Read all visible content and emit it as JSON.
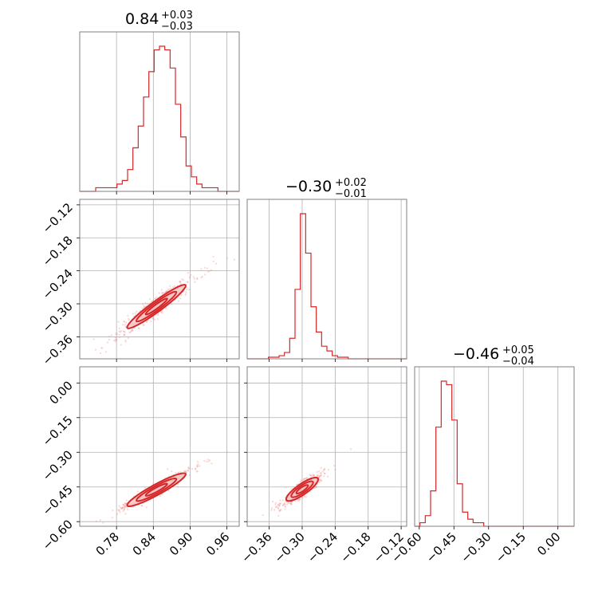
{
  "colors": {
    "series": "#d62728",
    "fill_light": "#f6c9c9",
    "points": "#f08a8a"
  },
  "chart_data": {
    "type": "corner",
    "parameters": [
      {
        "title_value": "0.84",
        "title_plus": "+0.03",
        "title_minus": "−0.03",
        "range": [
          0.72,
          0.98
        ],
        "ticks": [
          0.78,
          0.84,
          0.9,
          0.96
        ],
        "tick_labels": [
          "0.78",
          "0.84",
          "0.90",
          "0.96"
        ],
        "hist": [
          0,
          0,
          0,
          1,
          1,
          1,
          1,
          2,
          3,
          6,
          12,
          18,
          26,
          33,
          39,
          40,
          39,
          34,
          24,
          15,
          7,
          4,
          2,
          1,
          1,
          1,
          0,
          0,
          0,
          0
        ]
      },
      {
        "title_value": "−0.30",
        "title_plus": "+0.02",
        "title_minus": "−0.01",
        "range": [
          -0.4,
          -0.11
        ],
        "ticks": [
          -0.36,
          -0.3,
          -0.24,
          -0.18,
          -0.12
        ],
        "tick_labels": [
          "−0.36",
          "−0.30",
          "−0.24",
          "−0.18",
          "−0.12"
        ],
        "hist": [
          0,
          0,
          0,
          0,
          1,
          1,
          2,
          4,
          13,
          44,
          92,
          67,
          33,
          17,
          8,
          5,
          2,
          1,
          1,
          0,
          0,
          0,
          0,
          0,
          0,
          0,
          0,
          0,
          0,
          0
        ]
      },
      {
        "title_value": "−0.46",
        "title_plus": "+0.05",
        "title_minus": "−0.04",
        "range": [
          -0.62,
          0.07
        ],
        "ticks": [
          -0.6,
          -0.45,
          -0.3,
          -0.15,
          0.0
        ],
        "tick_labels": [
          "−0.60",
          "−0.45",
          "−0.30",
          "−0.15",
          "0.00"
        ],
        "hist": [
          0,
          1,
          3,
          10,
          28,
          41,
          40,
          30,
          12,
          4,
          2,
          1,
          1,
          0,
          0,
          0,
          0,
          0,
          0,
          0,
          0,
          0,
          0,
          0,
          0,
          0,
          0,
          0,
          0,
          0
        ]
      }
    ],
    "pairs": [
      {
        "xi": 0,
        "yi": 1,
        "slope": 0.82,
        "y0": -0.305,
        "x0": 0.845,
        "sx": 0.025,
        "sy": 0.008
      },
      {
        "xi": 0,
        "yi": 2,
        "slope": 1.45,
        "y0": -0.462,
        "x0": 0.845,
        "sx": 0.025,
        "sy": 0.012
      },
      {
        "xi": 1,
        "yi": 2,
        "slope": 1.65,
        "y0": -0.46,
        "x0": -0.3,
        "sx": 0.015,
        "sy": 0.016
      }
    ],
    "y_tick_labels": {
      "row1": [
        "−0.12",
        "−0.18",
        "−0.24",
        "−0.30",
        "−0.36"
      ],
      "row2": [
        "0.00",
        "−0.15",
        "−0.30",
        "−0.45",
        "−0.60"
      ]
    },
    "grid": true
  }
}
